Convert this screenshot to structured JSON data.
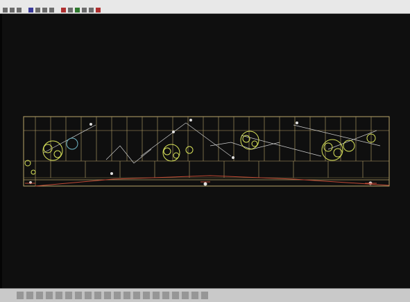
{
  "window": {
    "title": ""
  },
  "menu": {
    "items": [
      "",
      "",
      "",
      "",
      "",
      "",
      ""
    ]
  },
  "toolbar": {
    "icons": [
      "new-icon",
      "open-icon",
      "save-icon",
      "print-icon",
      "cut-icon",
      "copy-icon",
      "paste-icon",
      "undo-icon",
      "redo-icon",
      "zoom-icon",
      "pan-icon",
      "layer-icon",
      "properties-icon"
    ]
  },
  "drawing": {
    "background": "#0f0f0f",
    "colors": {
      "outline": "#b9a56a",
      "trees": "#d9e35a",
      "paths": "#cfcfcf",
      "accent": "#c24a35",
      "highlight": "#e0e0e0"
    }
  },
  "statusbar": {
    "text": ""
  }
}
